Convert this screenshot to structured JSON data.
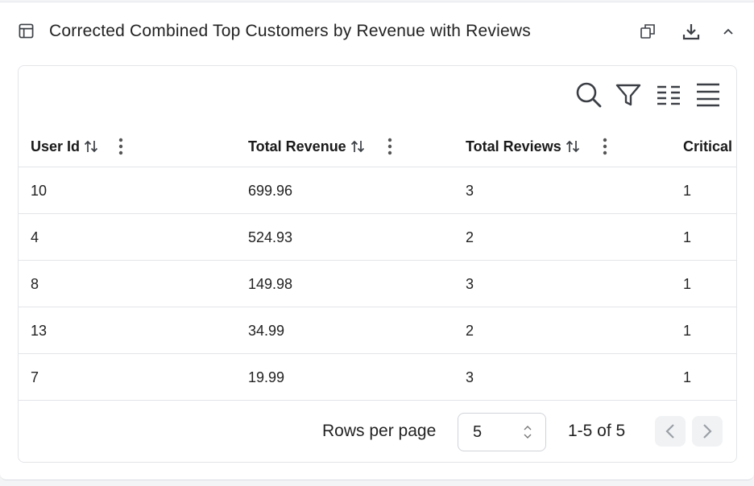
{
  "header": {
    "title": "Corrected Combined Top Customers by Revenue with Reviews",
    "icons": [
      "table-icon",
      "copy-icon",
      "download-icon",
      "chevron-up-icon"
    ]
  },
  "toolbar": {
    "icons": [
      "search-icon",
      "filter-icon",
      "columns-icon",
      "density-icon"
    ]
  },
  "table": {
    "columns": [
      {
        "label": "User Id"
      },
      {
        "label": "Total Revenue"
      },
      {
        "label": "Total Reviews"
      },
      {
        "label": "Critical"
      }
    ],
    "rows": [
      {
        "user_id": "10",
        "total_revenue": "699.96",
        "total_reviews": "3",
        "critical": "1"
      },
      {
        "user_id": "4",
        "total_revenue": "524.93",
        "total_reviews": "2",
        "critical": "1"
      },
      {
        "user_id": "8",
        "total_revenue": "149.98",
        "total_reviews": "3",
        "critical": "1"
      },
      {
        "user_id": "13",
        "total_revenue": "34.99",
        "total_reviews": "2",
        "critical": "1"
      },
      {
        "user_id": "7",
        "total_revenue": "19.99",
        "total_reviews": "3",
        "critical": "1"
      }
    ]
  },
  "pagination": {
    "rows_per_page_label": "Rows per page",
    "rows_per_page_value": "5",
    "range_label": "1-5 of 5"
  },
  "colors": {
    "text": "#1f1f1f",
    "icon": "#3b3f45",
    "border": "#e3e5e8",
    "disabled": "#9aa0a6"
  }
}
